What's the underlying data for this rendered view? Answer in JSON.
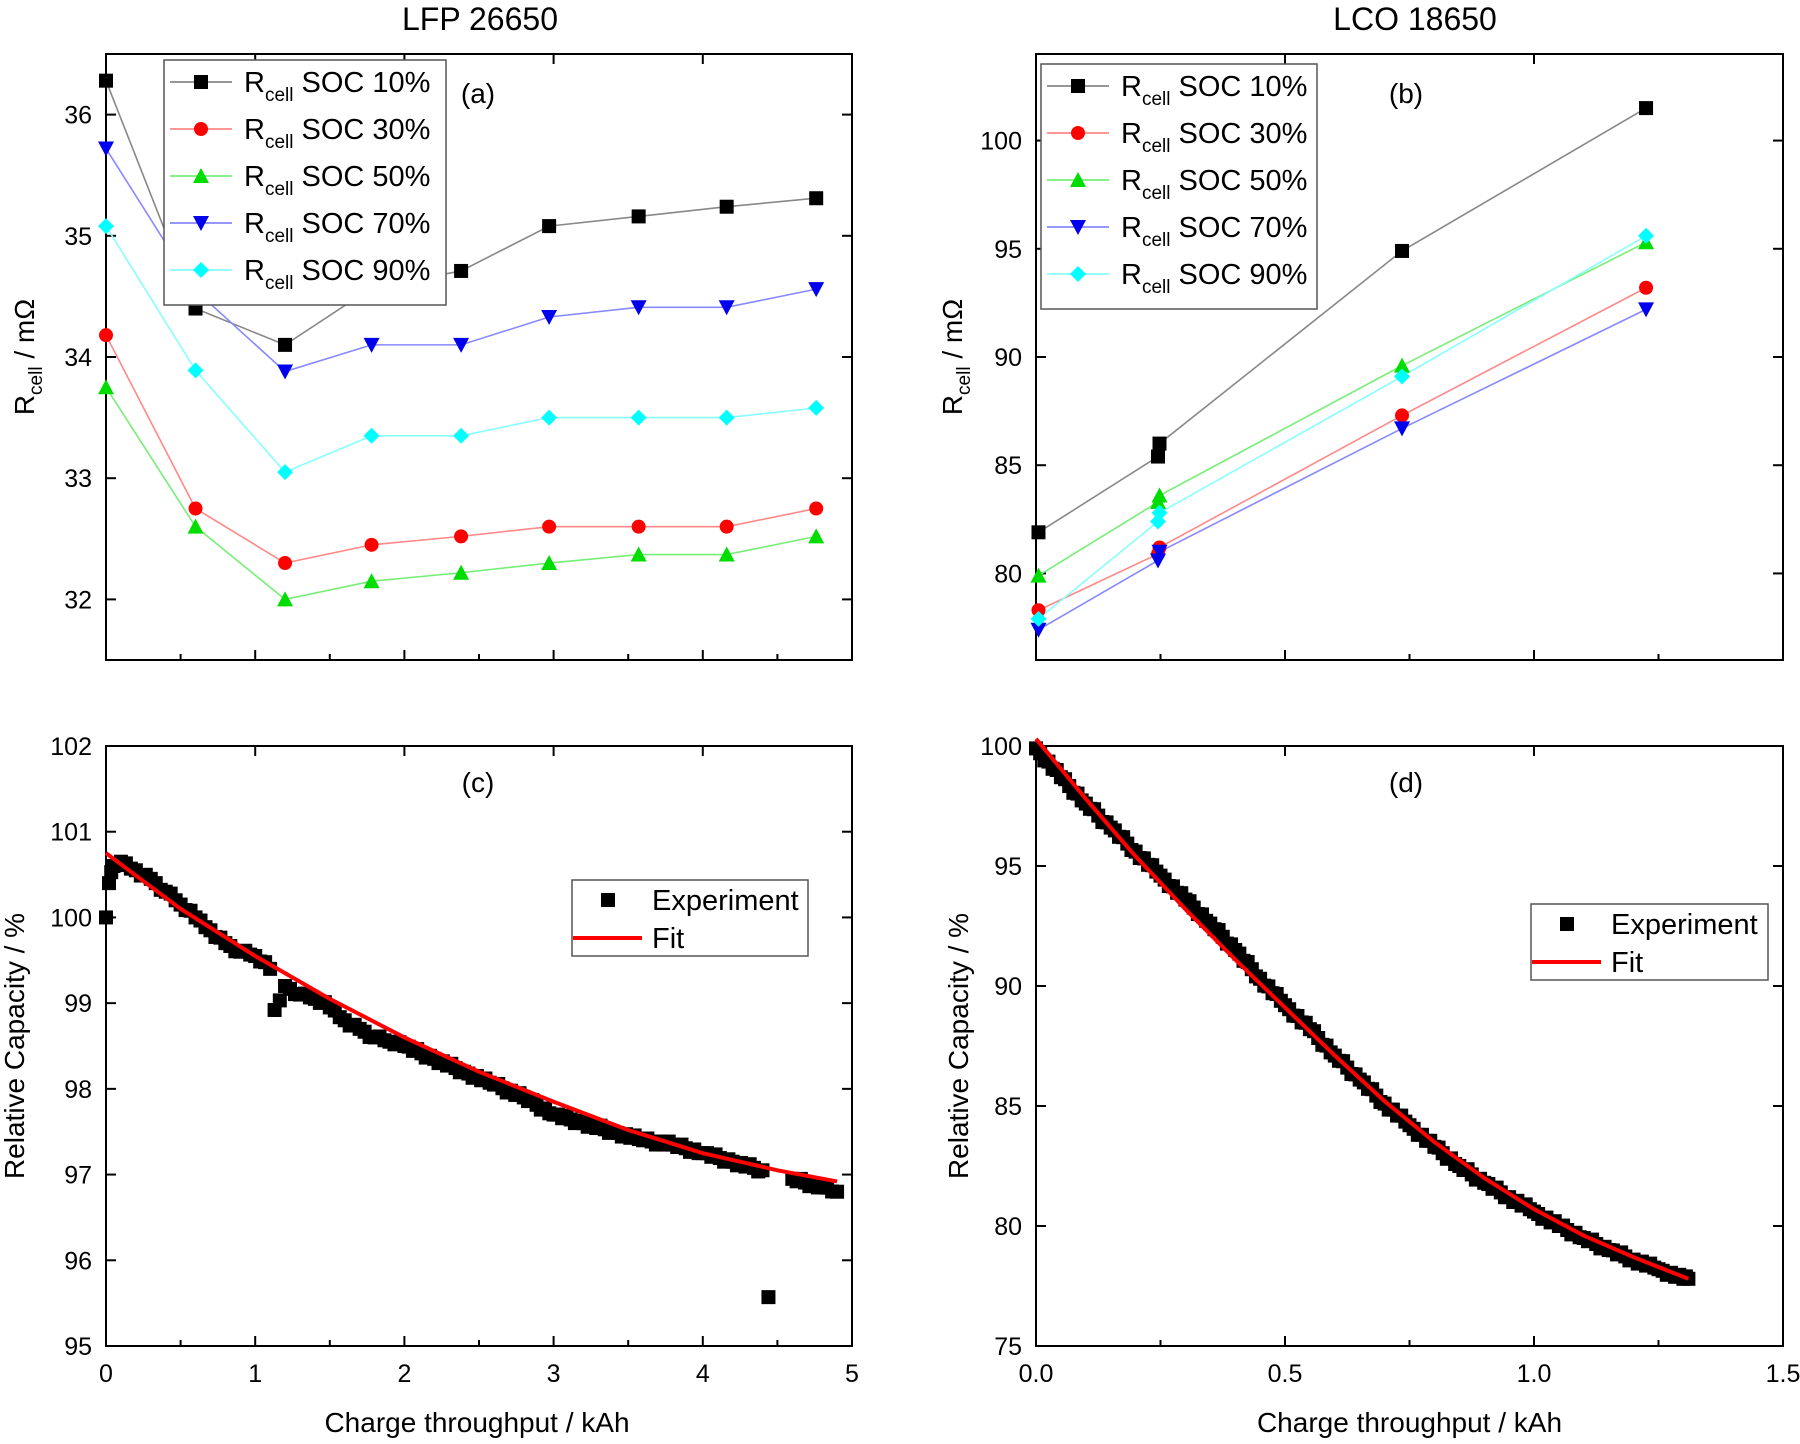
{
  "figure": {
    "col_titles": [
      "LFP 26650",
      "LCO 18650"
    ],
    "y_label_main": "R",
    "y_label_sub": "cell",
    "y_label_rest": " / mΩ",
    "y_label_capacity": "Relative Capacity / %",
    "x_label": "Charge throughput / kAh",
    "legend_prefix": "R",
    "legend_sub": "cell",
    "experiment_label": "Experiment",
    "fit_label": "Fit"
  },
  "chart_data": [
    {
      "panel": "(a)",
      "type": "line",
      "title": "LFP 26650",
      "xlabel": "Charge throughput / kAh",
      "ylabel": "R_cell / mΩ",
      "xlim": [
        0,
        5
      ],
      "ylim": [
        31.5,
        36.5
      ],
      "yticks": [
        "32",
        "33",
        "34",
        "35",
        "36"
      ],
      "legend_position": "top-left",
      "x": [
        0,
        0.6,
        1.2,
        1.78,
        2.38,
        2.97,
        3.57,
        4.16,
        4.76
      ],
      "series": [
        {
          "name": "SOC 10%",
          "marker": "square",
          "color": "#000000",
          "line": "#888888",
          "values": [
            36.28,
            34.4,
            34.1,
            34.57,
            34.71,
            35.08,
            35.16,
            35.24,
            35.31
          ]
        },
        {
          "name": "SOC 30%",
          "marker": "circle",
          "color": "#ff0000",
          "line": "#ff8888",
          "values": [
            34.18,
            32.75,
            32.3,
            32.45,
            32.52,
            32.6,
            32.6,
            32.6,
            32.75
          ]
        },
        {
          "name": "SOC 50%",
          "marker": "triangle-up",
          "color": "#00dd00",
          "line": "#77ee77",
          "values": [
            33.75,
            32.6,
            32.0,
            32.15,
            32.22,
            32.3,
            32.37,
            32.37,
            32.52
          ]
        },
        {
          "name": "SOC 70%",
          "marker": "triangle-down",
          "color": "#0000ee",
          "line": "#8888ff",
          "values": [
            35.72,
            34.55,
            33.88,
            34.1,
            34.1,
            34.33,
            34.41,
            34.41,
            34.56
          ]
        },
        {
          "name": "SOC 90%",
          "marker": "diamond",
          "color": "#00ffff",
          "line": "#88ffff",
          "values": [
            35.08,
            33.89,
            33.05,
            33.35,
            33.35,
            33.5,
            33.5,
            33.5,
            33.58
          ]
        }
      ]
    },
    {
      "panel": "(b)",
      "type": "line",
      "title": "LCO 18650",
      "xlabel": "Charge throughput / kAh",
      "ylabel": "R_cell / mΩ",
      "xlim": [
        0,
        1.5
      ],
      "ylim": [
        76,
        104
      ],
      "yticks": [
        "80",
        "85",
        "90",
        "95",
        "100"
      ],
      "legend_position": "top-left",
      "series": [
        {
          "name": "SOC 10%",
          "marker": "square",
          "color": "#000000",
          "line": "#888888",
          "x": [
            0.005,
            0.245,
            0.248,
            0.735,
            1.225
          ],
          "values": [
            81.9,
            85.4,
            86.0,
            94.9,
            101.5
          ]
        },
        {
          "name": "SOC 30%",
          "marker": "circle",
          "color": "#ff0000",
          "line": "#ff8888",
          "x": [
            0.005,
            0.245,
            0.248,
            0.735,
            1.225
          ],
          "values": [
            78.3,
            80.9,
            81.2,
            87.3,
            93.2
          ]
        },
        {
          "name": "SOC 50%",
          "marker": "triangle-up",
          "color": "#00dd00",
          "line": "#77ee77",
          "x": [
            0.005,
            0.245,
            0.248,
            0.735,
            1.225
          ],
          "values": [
            79.9,
            83.3,
            83.6,
            89.6,
            95.3
          ]
        },
        {
          "name": "SOC 70%",
          "marker": "triangle-down",
          "color": "#0000ee",
          "line": "#8888ff",
          "x": [
            0.005,
            0.245,
            0.248,
            0.735,
            1.225
          ],
          "values": [
            77.4,
            80.6,
            81.0,
            86.7,
            92.2
          ]
        },
        {
          "name": "SOC 90%",
          "marker": "diamond",
          "color": "#00ffff",
          "line": "#88ffff",
          "x": [
            0.005,
            0.245,
            0.248,
            0.735,
            1.225
          ],
          "values": [
            77.9,
            82.4,
            82.8,
            89.1,
            95.6
          ]
        }
      ]
    },
    {
      "panel": "(c)",
      "type": "scatter",
      "xlabel": "Charge throughput / kAh",
      "ylabel": "Relative Capacity / %",
      "xlim": [
        0,
        5
      ],
      "ylim": [
        95,
        102
      ],
      "xticks": [
        "0",
        "1",
        "2",
        "3",
        "4",
        "5"
      ],
      "yticks": [
        "95",
        "96",
        "97",
        "98",
        "99",
        "100",
        "101",
        "102"
      ],
      "legend_position": "center-right",
      "series": [
        {
          "name": "Experiment",
          "marker": "square",
          "color": "#000000",
          "x": [
            0.0,
            0.02,
            0.05,
            0.1,
            0.2,
            0.3,
            0.4,
            0.5,
            0.6,
            0.7,
            0.8,
            0.9,
            1.0,
            1.1,
            1.13,
            1.2,
            1.3,
            1.4,
            1.5,
            1.6,
            1.7,
            1.8,
            1.9,
            2.0,
            2.2,
            2.4,
            2.6,
            2.8,
            3.0,
            3.2,
            3.4,
            3.6,
            3.8,
            4.0,
            4.2,
            4.4,
            4.44,
            4.6,
            4.8,
            4.9
          ],
          "values": [
            100.0,
            100.4,
            100.6,
            100.65,
            100.55,
            100.45,
            100.3,
            100.15,
            100.0,
            99.85,
            99.7,
            99.6,
            99.55,
            99.4,
            98.92,
            99.2,
            99.1,
            99.05,
            98.95,
            98.8,
            98.7,
            98.6,
            98.55,
            98.5,
            98.35,
            98.2,
            98.05,
            97.9,
            97.7,
            97.6,
            97.5,
            97.4,
            97.35,
            97.25,
            97.15,
            97.05,
            95.57,
            96.95,
            96.85,
            96.8
          ]
        },
        {
          "name": "Fit",
          "type": "line",
          "color": "#ff0000",
          "x": [
            0,
            0.5,
            1,
            1.5,
            2,
            2.5,
            3,
            3.5,
            4,
            4.5,
            4.9
          ],
          "values": [
            100.75,
            100.1,
            99.55,
            99.05,
            98.6,
            98.2,
            97.85,
            97.52,
            97.25,
            97.05,
            96.92
          ]
        }
      ]
    },
    {
      "panel": "(d)",
      "type": "scatter",
      "xlabel": "Charge throughput / kAh",
      "ylabel": "Relative Capacity / %",
      "xlim": [
        0,
        1.5
      ],
      "ylim": [
        75,
        100
      ],
      "xticks": [
        "0.0",
        "0.5",
        "1.0",
        "1.5"
      ],
      "yticks": [
        "75",
        "80",
        "85",
        "90",
        "95",
        "100"
      ],
      "legend_position": "center-right",
      "series": [
        {
          "name": "Experiment",
          "marker": "square",
          "color": "#000000",
          "x": [
            0.0,
            0.05,
            0.1,
            0.15,
            0.2,
            0.25,
            0.3,
            0.35,
            0.4,
            0.45,
            0.5,
            0.55,
            0.6,
            0.65,
            0.7,
            0.75,
            0.8,
            0.85,
            0.9,
            0.95,
            1.0,
            1.05,
            1.1,
            1.15,
            1.2,
            1.25,
            1.3,
            1.31
          ],
          "values": [
            99.9,
            98.7,
            97.6,
            96.6,
            95.6,
            94.6,
            93.6,
            92.6,
            91.5,
            90.3,
            89.2,
            88.2,
            87.1,
            86.1,
            85.1,
            84.2,
            83.3,
            82.5,
            81.8,
            81.2,
            80.6,
            80.0,
            79.5,
            79.0,
            78.6,
            78.2,
            77.8,
            77.8
          ]
        },
        {
          "name": "Fit",
          "type": "line",
          "color": "#ff0000",
          "x": [
            0,
            0.1,
            0.2,
            0.3,
            0.4,
            0.5,
            0.6,
            0.7,
            0.8,
            0.9,
            1.0,
            1.1,
            1.2,
            1.31
          ],
          "values": [
            100.3,
            97.8,
            95.4,
            93.2,
            91.1,
            89.1,
            87.1,
            85.2,
            83.5,
            82.0,
            80.7,
            79.6,
            78.7,
            77.8
          ]
        }
      ]
    }
  ]
}
